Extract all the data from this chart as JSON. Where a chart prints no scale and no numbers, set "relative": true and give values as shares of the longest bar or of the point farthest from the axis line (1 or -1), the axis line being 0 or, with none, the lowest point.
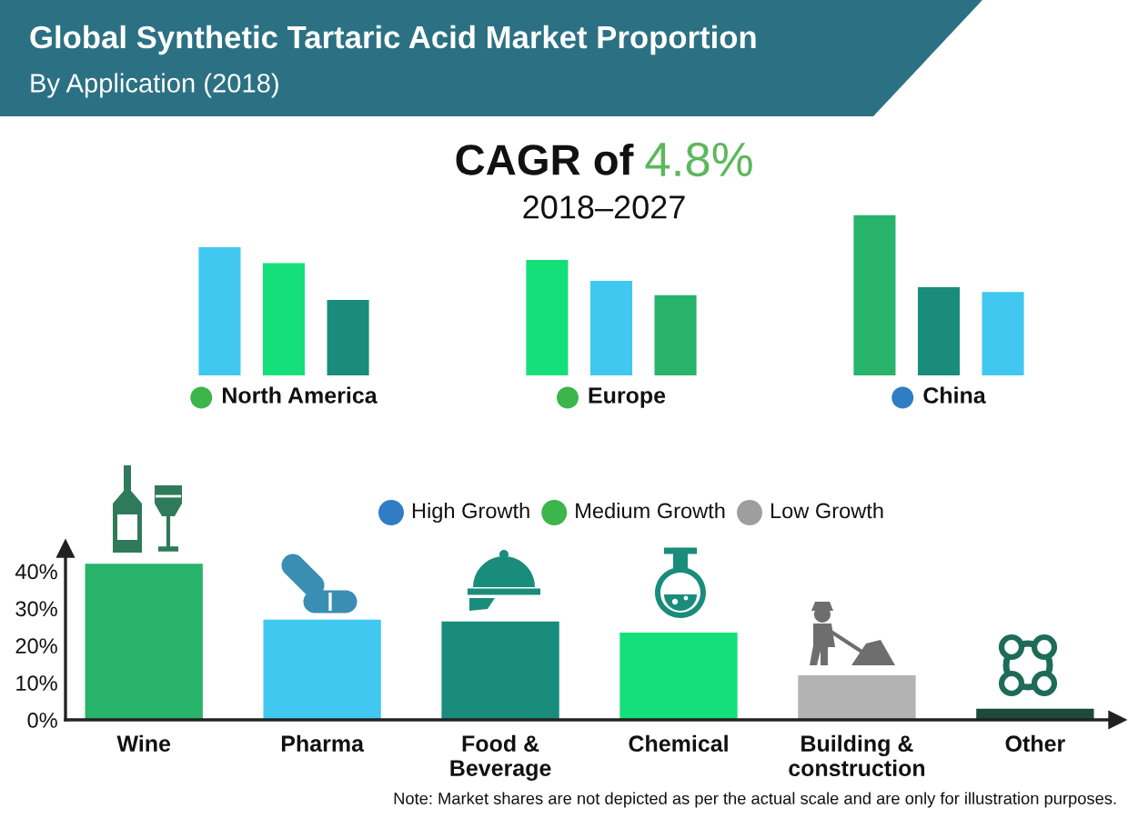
{
  "chart_data": [
    {
      "type": "bar",
      "title": "Global Synthetic Tartaric Acid Market Proportion",
      "subtitle": "By Application (2018)",
      "relative": true,
      "categories": [
        "North America",
        "Europe",
        "China"
      ],
      "series": [
        {
          "colors": [
            "#40c8f0",
            "#14df78",
            "#27b36a"
          ],
          "values": [
            0.8,
            0.72,
            1
          ]
        },
        {
          "colors": [
            "#14df78",
            "#40c8f0",
            "#1a8c7c"
          ],
          "values": [
            0.7,
            0.59,
            0.55
          ]
        },
        {
          "colors": [
            "#1a8c7c",
            "#27b36a",
            "#40c8f0"
          ],
          "values": [
            0.47,
            0.5,
            0.52
          ]
        }
      ],
      "annotations": [
        "CAGR of 4.8%",
        "2018–2027"
      ]
    },
    {
      "type": "other",
      "categories": [
        "High Growth",
        "Medium Growth",
        "Low Growth"
      ],
      "colors": [
        "#2f7dc4",
        "#3cb54a",
        "#9e9e9e"
      ]
    },
    {
      "type": "bar",
      "categories": [
        "Wine",
        "Pharma",
        "Food & Beverage",
        "Chemical",
        "Building & construction",
        "Other"
      ],
      "values": [
        42,
        27,
        26.5,
        23.5,
        12,
        3
      ],
      "colors": [
        "#27b36a",
        "#40c8f0",
        "#1a8c7c",
        "#14df78",
        "#b3b3b3",
        "#1d4a3c"
      ],
      "ylim": [
        0,
        46
      ],
      "yticks": [
        {
          "value": 0,
          "label": "0%"
        },
        {
          "value": 10,
          "label": "10%"
        },
        {
          "value": 20,
          "label": "20%"
        },
        {
          "value": 30,
          "label": "30%"
        },
        {
          "value": 40,
          "label": "40%"
        }
      ],
      "annotations": [
        "Note: Market shares are not depicted as per the actual scale and are only for illustration purposes."
      ]
    }
  ]
}
